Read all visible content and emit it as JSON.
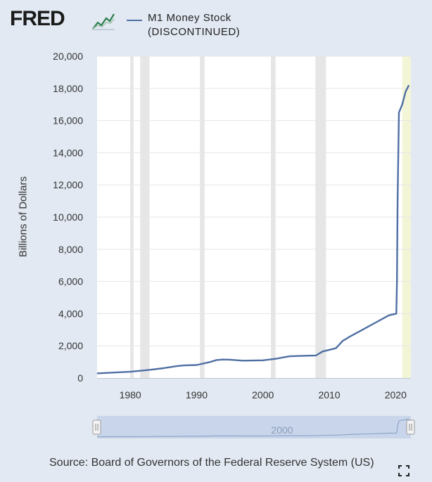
{
  "header": {
    "logo_text": "FRED",
    "logo_icon": "fred-line-graph-icon",
    "legend_label_line1": "M1 Money Stock",
    "legend_label_line2": "(DISCONTINUED)"
  },
  "colors": {
    "background": "#e2e9f2",
    "plot_background": "#ffffff",
    "series_line": "#4f6fa3",
    "recession_band": "#e6e6e6",
    "forecast_band": "#f3f6d6",
    "navigator_fill": "#c9d5ea"
  },
  "source_text": "Source: Board of Governors of the Federal Reserve System (US)",
  "navigator": {
    "label": "2000"
  },
  "chart_data": {
    "type": "line",
    "title": "",
    "xlabel": "",
    "ylabel": "Billions of Dollars",
    "xlim": [
      1975,
      2022.3
    ],
    "ylim": [
      0,
      20000
    ],
    "x_ticks": [
      1980,
      1990,
      2000,
      2010,
      2020
    ],
    "y_ticks": [
      0,
      2000,
      4000,
      6000,
      8000,
      10000,
      12000,
      14000,
      16000,
      18000,
      20000
    ],
    "y_tick_labels": [
      "0",
      "2,000",
      "4,000",
      "6,000",
      "8,000",
      "10,000",
      "12,000",
      "14,000",
      "16,000",
      "18,000",
      "20,000"
    ],
    "grid": "horizontal",
    "legend": "top",
    "recession_bands": [
      [
        1980.0,
        1980.5
      ],
      [
        1981.5,
        1982.9
      ],
      [
        1990.5,
        1991.2
      ],
      [
        2001.2,
        2001.9
      ],
      [
        2007.9,
        2009.5
      ]
    ],
    "highlight_band": [
      2021.0,
      2022.3
    ],
    "series": [
      {
        "name": "M1 Money Stock",
        "x": [
          1975,
          1977,
          1980,
          1983,
          1985,
          1987,
          1988,
          1990,
          1992,
          1993,
          1994,
          1995,
          1997,
          2000,
          2002,
          2004,
          2006,
          2008,
          2009,
          2010,
          2011,
          2012,
          2013,
          2015,
          2017,
          2019,
          2020.1,
          2020.2,
          2020.3,
          2020.5,
          2021,
          2021.5,
          2022
        ],
        "y": [
          290,
          330,
          390,
          510,
          610,
          740,
          780,
          810,
          990,
          1120,
          1150,
          1140,
          1080,
          1100,
          1200,
          1350,
          1380,
          1400,
          1650,
          1750,
          1850,
          2300,
          2550,
          3000,
          3450,
          3900,
          4000,
          6000,
          11000,
          16500,
          17000,
          17800,
          18200
        ]
      }
    ]
  }
}
